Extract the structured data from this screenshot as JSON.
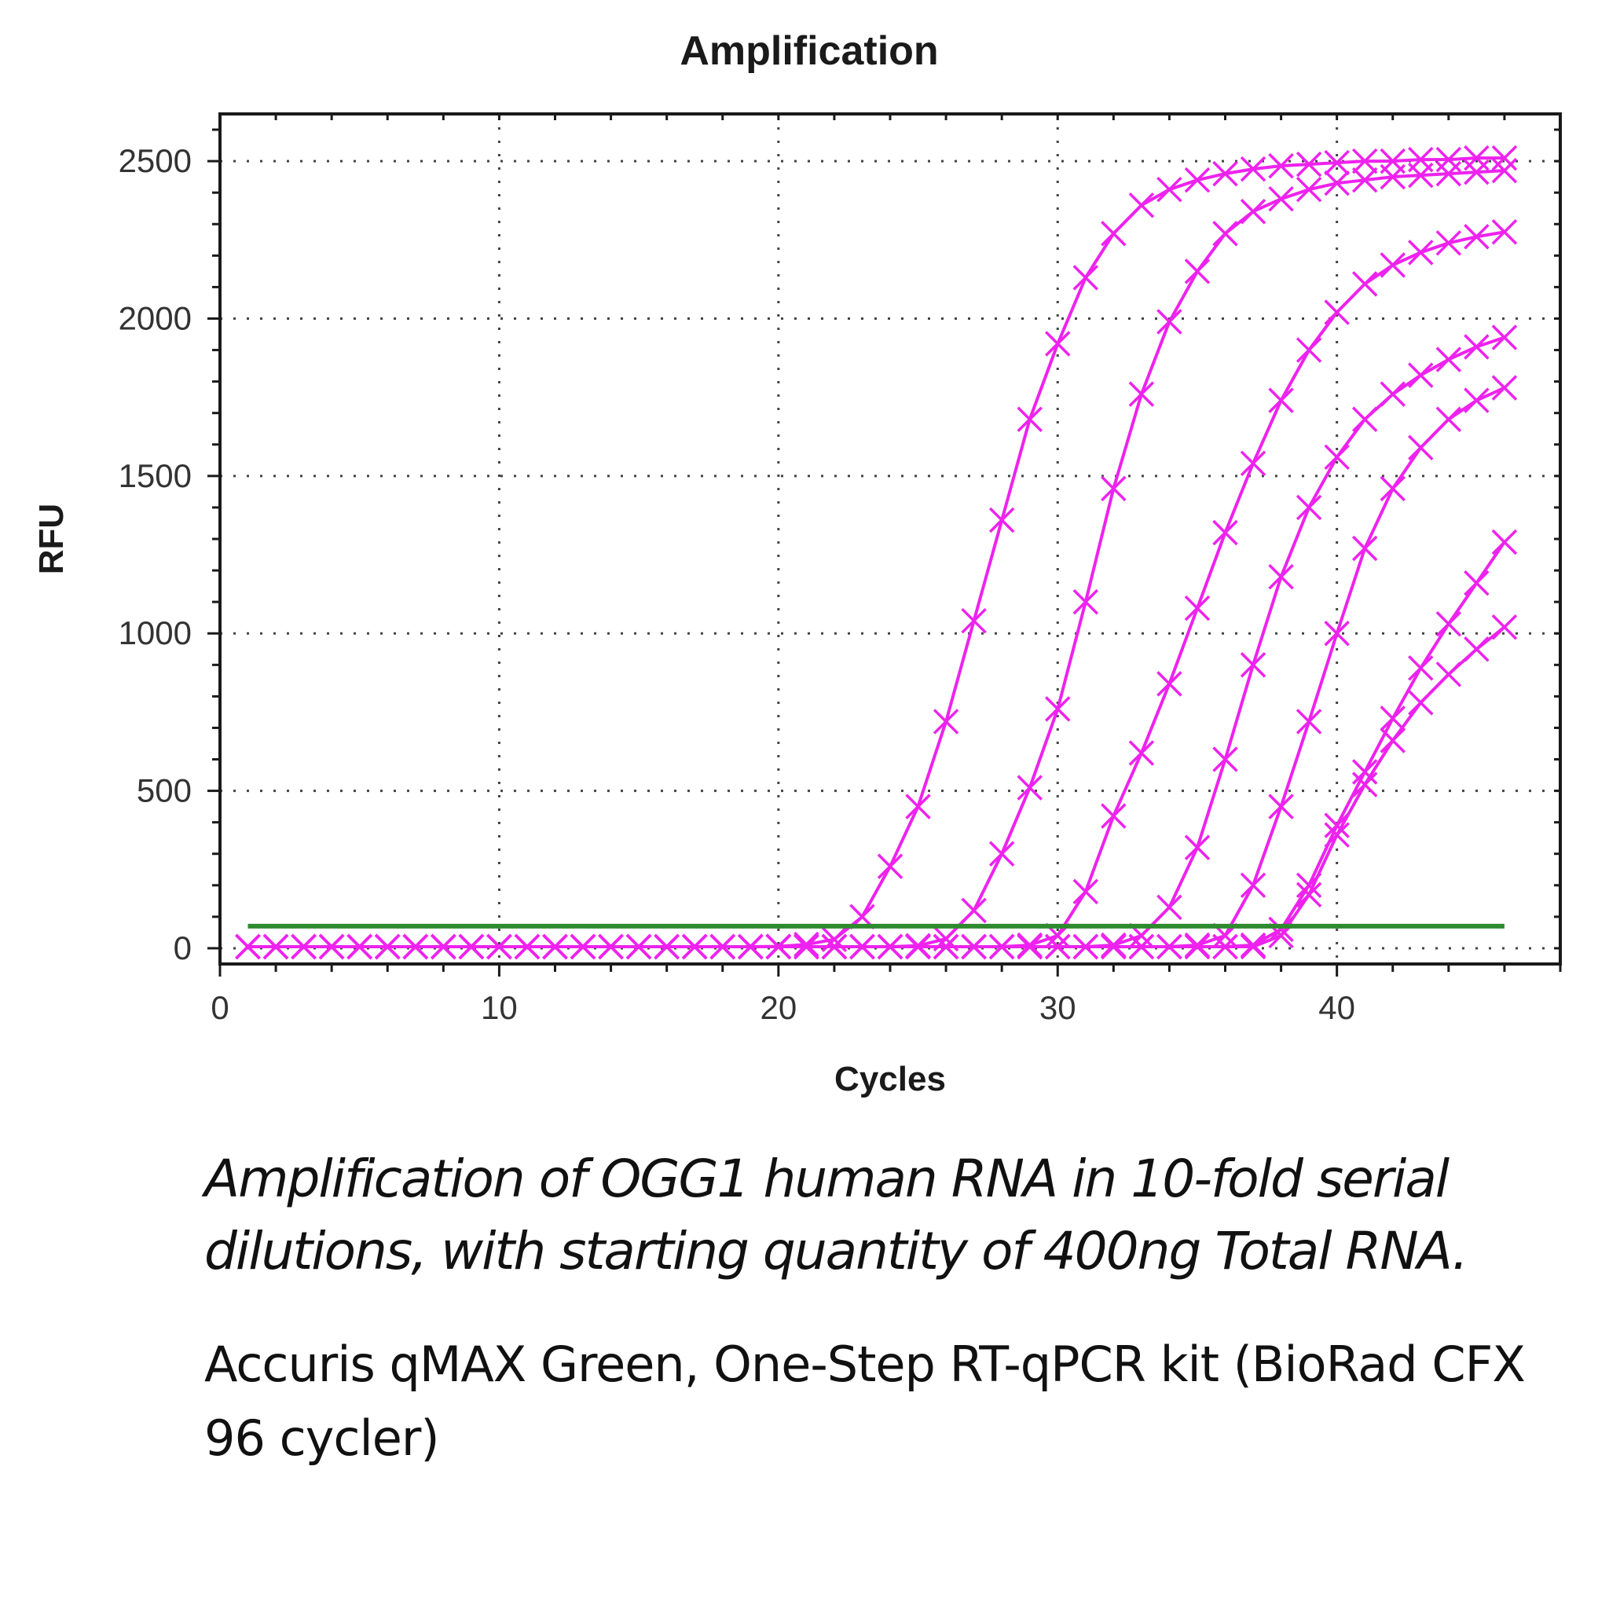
{
  "chart_data": {
    "type": "line",
    "title": "Amplification",
    "xlabel": "Cycles",
    "ylabel": "RFU",
    "xlim": [
      0,
      48
    ],
    "ylim": [
      -50,
      2650
    ],
    "x_ticks": [
      0,
      10,
      20,
      30,
      40
    ],
    "y_ticks": [
      0,
      500,
      1000,
      1500,
      2000,
      2500
    ],
    "grid": true,
    "marker": "x",
    "series_color": "#ee22ee",
    "threshold_color": "#2e8b2e",
    "x": [
      1,
      2,
      3,
      4,
      5,
      6,
      7,
      8,
      9,
      10,
      11,
      12,
      13,
      14,
      15,
      16,
      17,
      18,
      19,
      20,
      21,
      22,
      23,
      24,
      25,
      26,
      27,
      28,
      29,
      30,
      31,
      32,
      33,
      34,
      35,
      36,
      37,
      38,
      39,
      40,
      41,
      42,
      43,
      44,
      45,
      46
    ],
    "threshold": 70,
    "series": [
      {
        "values": [
          5,
          5,
          5,
          5,
          5,
          5,
          5,
          5,
          5,
          5,
          5,
          5,
          5,
          5,
          5,
          5,
          5,
          5,
          5,
          6,
          12,
          28,
          100,
          260,
          450,
          720,
          1040,
          1360,
          1680,
          1920,
          2130,
          2270,
          2360,
          2410,
          2440,
          2460,
          2475,
          2485,
          2490,
          2495,
          2500,
          2500,
          2505,
          2505,
          2510,
          2510
        ]
      },
      {
        "values": [
          5,
          5,
          5,
          5,
          5,
          5,
          5,
          5,
          5,
          5,
          5,
          5,
          5,
          5,
          5,
          5,
          5,
          5,
          5,
          5,
          5,
          5,
          5,
          5,
          8,
          30,
          120,
          300,
          510,
          760,
          1100,
          1460,
          1760,
          1990,
          2150,
          2270,
          2340,
          2380,
          2410,
          2430,
          2440,
          2450,
          2455,
          2460,
          2465,
          2470
        ]
      },
      {
        "values": [
          5,
          5,
          5,
          5,
          5,
          5,
          5,
          5,
          5,
          5,
          5,
          5,
          5,
          5,
          5,
          5,
          5,
          5,
          5,
          5,
          5,
          5,
          5,
          5,
          5,
          5,
          5,
          5,
          10,
          40,
          180,
          420,
          620,
          840,
          1080,
          1320,
          1540,
          1740,
          1900,
          2020,
          2110,
          2170,
          2210,
          2240,
          2260,
          2275
        ]
      },
      {
        "values": [
          5,
          5,
          5,
          5,
          5,
          5,
          5,
          5,
          5,
          5,
          5,
          5,
          5,
          5,
          5,
          5,
          5,
          5,
          5,
          5,
          5,
          5,
          5,
          5,
          5,
          5,
          5,
          5,
          5,
          5,
          5,
          10,
          40,
          130,
          320,
          600,
          900,
          1180,
          1400,
          1560,
          1680,
          1760,
          1820,
          1870,
          1910,
          1940
        ]
      },
      {
        "values": [
          5,
          5,
          5,
          5,
          5,
          5,
          5,
          5,
          5,
          5,
          5,
          5,
          5,
          5,
          5,
          5,
          5,
          5,
          5,
          5,
          5,
          5,
          5,
          5,
          5,
          5,
          5,
          5,
          5,
          5,
          5,
          5,
          5,
          5,
          10,
          40,
          200,
          450,
          720,
          1000,
          1270,
          1460,
          1590,
          1680,
          1740,
          1780
        ]
      },
      {
        "values": [
          5,
          5,
          5,
          5,
          5,
          5,
          5,
          5,
          5,
          5,
          5,
          5,
          5,
          5,
          5,
          5,
          5,
          5,
          5,
          5,
          5,
          5,
          5,
          5,
          5,
          5,
          5,
          5,
          5,
          5,
          5,
          5,
          5,
          5,
          5,
          5,
          10,
          60,
          200,
          390,
          560,
          730,
          890,
          1030,
          1160,
          1290
        ]
      },
      {
        "values": [
          5,
          5,
          5,
          5,
          5,
          5,
          5,
          5,
          5,
          5,
          5,
          5,
          5,
          5,
          5,
          5,
          5,
          5,
          5,
          5,
          5,
          5,
          5,
          5,
          5,
          5,
          5,
          5,
          5,
          5,
          5,
          5,
          5,
          5,
          5,
          5,
          5,
          40,
          170,
          360,
          520,
          660,
          780,
          870,
          950,
          1020
        ]
      }
    ]
  },
  "caption": {
    "main": "Amplification of OGG1 human RNA in 10-fold serial dilutions, with starting quantity of 400ng Total RNA.",
    "sub": "Accuris qMAX Green, One-Step RT-qPCR kit (BioRad CFX 96 cycler)"
  }
}
